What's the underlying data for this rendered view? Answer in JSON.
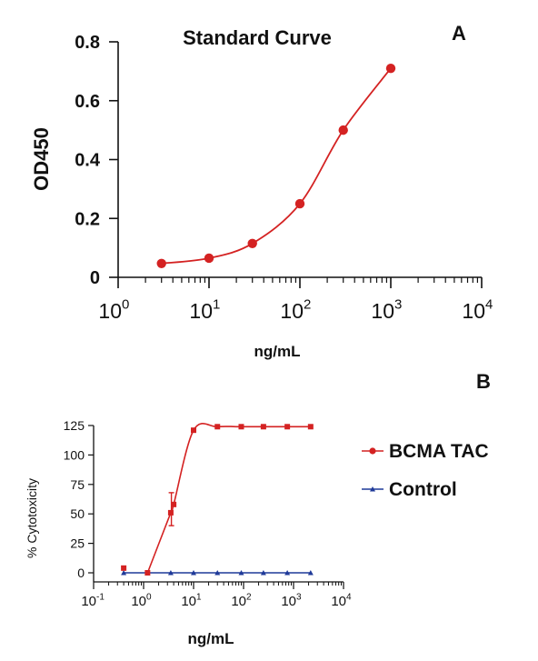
{
  "colors": {
    "red": "#d42222",
    "blue": "#1f3a99",
    "axis": "#111111"
  },
  "chart_data": [
    {
      "panel_label": "A",
      "type": "scatter",
      "title": "Standard Curve",
      "xlabel": "ng/mL",
      "ylabel": "OD450",
      "xscale": "log",
      "xlim": [
        1,
        10000
      ],
      "ylim": [
        0,
        0.8
      ],
      "x_ticks": [
        {
          "base": "10",
          "exp": "0"
        },
        {
          "base": "10",
          "exp": "1"
        },
        {
          "base": "10",
          "exp": "2"
        },
        {
          "base": "10",
          "exp": "3"
        },
        {
          "base": "10",
          "exp": "4"
        }
      ],
      "y_ticks": [
        "0",
        "0.2",
        "0.4",
        "0.6",
        "0.8"
      ],
      "series": [
        {
          "x": [
            3,
            10,
            30,
            100,
            300,
            1000
          ],
          "y": [
            0.047,
            0.065,
            0.115,
            0.25,
            0.5,
            0.71
          ]
        }
      ]
    },
    {
      "panel_label": "B",
      "type": "line",
      "xlabel": "ng/mL",
      "ylabel": "% Cytotoxicity",
      "xscale": "log",
      "xlim": [
        0.1,
        10000
      ],
      "ylim": [
        0,
        125
      ],
      "x_ticks": [
        {
          "base": "10",
          "exp": "-1"
        },
        {
          "base": "10",
          "exp": "0"
        },
        {
          "base": "10",
          "exp": "1"
        },
        {
          "base": "10",
          "exp": "2"
        },
        {
          "base": "10",
          "exp": "3"
        },
        {
          "base": "10",
          "exp": "4"
        }
      ],
      "y_ticks": [
        "0",
        "25",
        "50",
        "75",
        "100",
        "125"
      ],
      "legend_position": "right",
      "series": [
        {
          "name": "BCMA TAC",
          "x": [
            0.4,
            1.2,
            3.5,
            4,
            10,
            30,
            90,
            250,
            750,
            2200
          ],
          "y": [
            4,
            0,
            51,
            58,
            121,
            124,
            124,
            124,
            124,
            124
          ]
        },
        {
          "name": "Control",
          "x": [
            0.4,
            1.2,
            3.5,
            10,
            30,
            90,
            250,
            750,
            2200
          ],
          "y": [
            0,
            0,
            0,
            0,
            0,
            0,
            0,
            0,
            0
          ]
        }
      ]
    }
  ]
}
